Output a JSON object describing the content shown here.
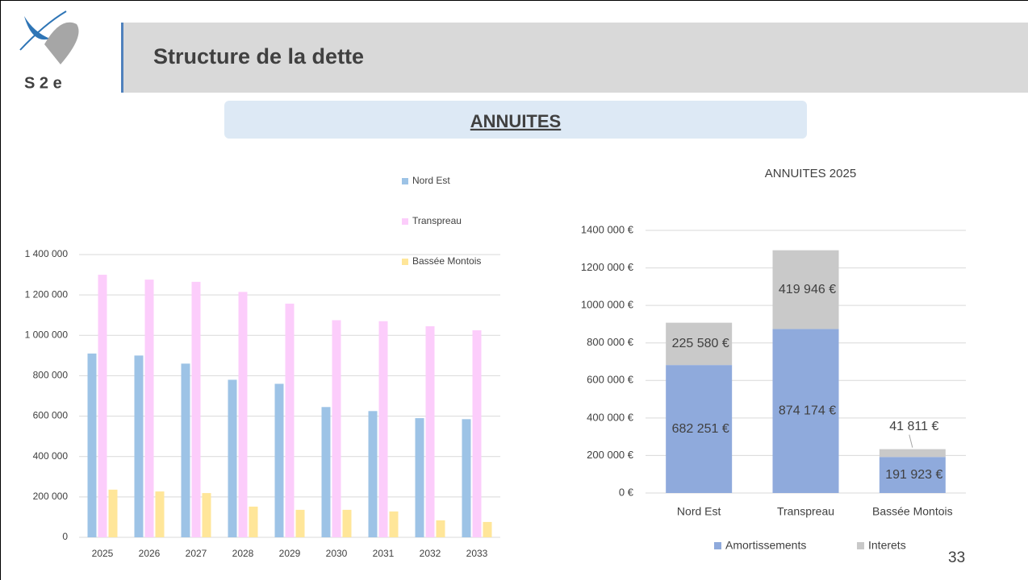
{
  "header": {
    "logo": "S 2 e",
    "title": "Structure de la dette",
    "subtitle": "ANNUITES",
    "page_number": "33"
  },
  "chart_data": [
    {
      "type": "bar",
      "categories": [
        "2025",
        "2026",
        "2027",
        "2028",
        "2029",
        "2030",
        "2031",
        "2032",
        "2033"
      ],
      "series": [
        {
          "name": "Nord Est",
          "color": "#9dc3e6",
          "values": [
            910000,
            900000,
            860000,
            780000,
            760000,
            645000,
            625000,
            590000,
            585000
          ]
        },
        {
          "name": "Transpreau",
          "color": "#fccdfb",
          "values": [
            1300000,
            1276000,
            1265000,
            1215000,
            1157000,
            1075000,
            1070000,
            1045000,
            1025000
          ]
        },
        {
          "name": "Bassée Montois",
          "color": "#ffe699",
          "values": [
            236000,
            227000,
            219000,
            152000,
            136000,
            136000,
            128000,
            84000,
            76000
          ]
        }
      ],
      "ylim": [
        0,
        1400000
      ],
      "yticks": [
        0,
        {
          "value": 200000,
          "label": "200 000"
        },
        {
          "value": 400000,
          "label": "400 000"
        },
        {
          "value": 600000,
          "label": "600 000"
        },
        {
          "value": 800000,
          "label": "800 000"
        },
        {
          "value": 1000000,
          "label": "1 000 000"
        },
        {
          "value": 1200000,
          "label": "1 200 000"
        },
        {
          "value": 1400000,
          "label": "1 400 000"
        }
      ],
      "grid": true,
      "legend": "top-right"
    },
    {
      "type": "stacked_bar",
      "title": "ANNUITES 2025",
      "categories": [
        "Nord Est",
        "Transpreau",
        "Bassée Montois"
      ],
      "series": [
        {
          "name": "Amortissements",
          "color": "#8faadc",
          "values": [
            682251,
            874174,
            191923
          ],
          "value_labels": [
            "682 251 €",
            "874 174 €",
            "191 923 €"
          ]
        },
        {
          "name": "Interets",
          "color": "#c9c9c9",
          "values": [
            225580,
            419946,
            41811
          ],
          "value_labels": [
            "225 580 €",
            "419 946 €",
            "41 811 €"
          ]
        }
      ],
      "ylim": [
        0,
        1400000
      ],
      "yticks": [
        {
          "value": 0,
          "label": "0 €"
        },
        {
          "value": 200000,
          "label": "200 000 €"
        },
        {
          "value": 400000,
          "label": "400 000 €"
        },
        {
          "value": 600000,
          "label": "600 000 €"
        },
        {
          "value": 800000,
          "label": "800 000 €"
        },
        {
          "value": 1000000,
          "label": "1000 000 €"
        },
        {
          "value": 1200000,
          "label": "1200 000 €"
        },
        {
          "value": 1400000,
          "label": "1400 000 €"
        }
      ],
      "grid": true,
      "legend": "bottom"
    }
  ]
}
